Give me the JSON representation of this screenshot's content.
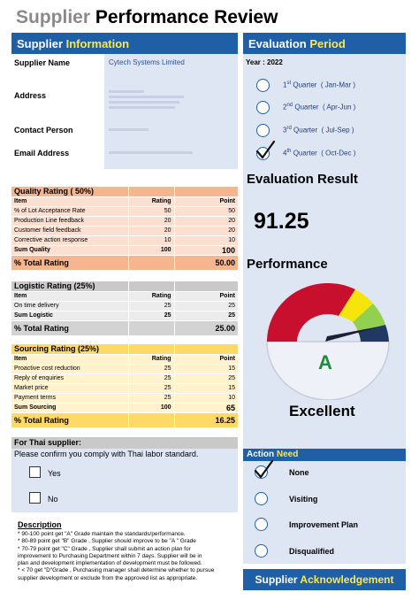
{
  "title": {
    "part1": "Supplier",
    "part2": " Performance Review"
  },
  "supplier_info": {
    "header_part1": "Supplier",
    "header_part2": " Information",
    "fields": [
      {
        "label": "Supplier Name",
        "value": "Cytech Systems Limited"
      },
      {
        "label": "Address",
        "value": ""
      },
      {
        "label": "Contact Person",
        "value": ""
      },
      {
        "label": "Email Address",
        "value": ""
      }
    ]
  },
  "quality": {
    "header": "Quality Rating ( 50%)",
    "col_item": "Item",
    "col_rating": "Rating",
    "col_point": "Point",
    "rows": [
      {
        "item": "% of Lot Acceptance Rate",
        "rating": "50",
        "point": "50"
      },
      {
        "item": "Production Line feedback",
        "rating": "20",
        "point": "20"
      },
      {
        "item": "Customer field feedback",
        "rating": "20",
        "point": "20"
      },
      {
        "item": "Corrective action response",
        "rating": "10",
        "point": "10"
      }
    ],
    "sum_label": "Sum Quality",
    "sum_rating": "100",
    "sum_point": "100",
    "total_label": "% Total Rating",
    "total_value": "50.00"
  },
  "logistic": {
    "header": "Logistic Rating (25%)",
    "col_item": "Item",
    "col_rating": "Rating",
    "col_point": "Point",
    "rows": [
      {
        "item": "On time delivery",
        "rating": "25",
        "point": "25"
      }
    ],
    "sum_label": "Sum Logistic",
    "sum_rating": "25",
    "sum_point": "25",
    "total_label": "% Total Rating",
    "total_value": "25.00"
  },
  "sourcing": {
    "header": "Sourcing Rating (25%)",
    "col_item": "Item",
    "col_rating": "Rating",
    "col_point": "Point",
    "rows": [
      {
        "item": "Proactive cost reduction",
        "rating": "25",
        "point": "15"
      },
      {
        "item": "Reply of enquiries",
        "rating": "25",
        "point": "25"
      },
      {
        "item": "Market price",
        "rating": "25",
        "point": "15"
      },
      {
        "item": "Payment terms",
        "rating": "25",
        "point": "10"
      }
    ],
    "sum_label": "Sum Sourcing",
    "sum_rating": "100",
    "sum_point": "65",
    "total_label": "% Total Rating",
    "total_value": "16.25"
  },
  "thai": {
    "header": "For Thai supplier:",
    "question": "Please confirm you comply with Thai labor standard.",
    "yes_label": "Yes",
    "no_label": "No"
  },
  "description": {
    "title": "Description",
    "lines": [
      "* 90-100 point get \"A\" Grade maintain the standards/performance.",
      "* 80-89 point get \"B\" Grade , Supplier should improve  to be \"A \" Grade",
      "* 70-79 point get \"C\" Grade , Supplier shall submit an action plan for",
      "improvement to Purchasing Department within 7 days. Supplier will be in",
      "plan  and development  implementation of development must be followed.",
      "* < 70  get \"D\"Grade , Purchasing manager shall determine whether to pursue",
      "supplier development or exclude from the approved list as appropriate."
    ]
  },
  "evaluation_period": {
    "header_part1": "Evaluation",
    "header_part2": " Period",
    "year": "Year : 2022",
    "quarters": [
      {
        "num": "1",
        "suffix": "st",
        "word": " Quarter",
        "range": "( Jan-Mar )",
        "checked": false
      },
      {
        "num": "2",
        "suffix": "nd",
        "word": " Quarter",
        "range": "( Apr-Jun )",
        "checked": false
      },
      {
        "num": "3",
        "suffix": "rd",
        "word": " Quarter",
        "range": "( Jul-Sep )",
        "checked": false
      },
      {
        "num": "4",
        "suffix": "th",
        "word": " Quarter",
        "range": "( Oct-Dec )",
        "checked": true
      }
    ]
  },
  "result": {
    "label": "Evaluation Result",
    "score": "91.25",
    "performance_label": "Performance",
    "grade": "A",
    "grade_text": "Excellent",
    "score_value": 91.25
  },
  "action": {
    "header_part1": "Action",
    "header_part2": " Need",
    "options": [
      {
        "label": "None",
        "checked": true
      },
      {
        "label": "Visiting",
        "checked": false
      },
      {
        "label": "Improvement Plan",
        "checked": false
      },
      {
        "label": "Disqualified",
        "checked": false
      }
    ]
  },
  "acknowledgement": {
    "part1": "Supplier",
    "part2": " Acknowledgement"
  },
  "colors": {
    "header_blue": "#1f5fa8",
    "accent_yellow": "#ffe74c",
    "gauge_red": "#c8102e",
    "gauge_yellow": "#f5e50a",
    "gauge_green": "#92d050",
    "grade_green": "#1e8a3c"
  }
}
